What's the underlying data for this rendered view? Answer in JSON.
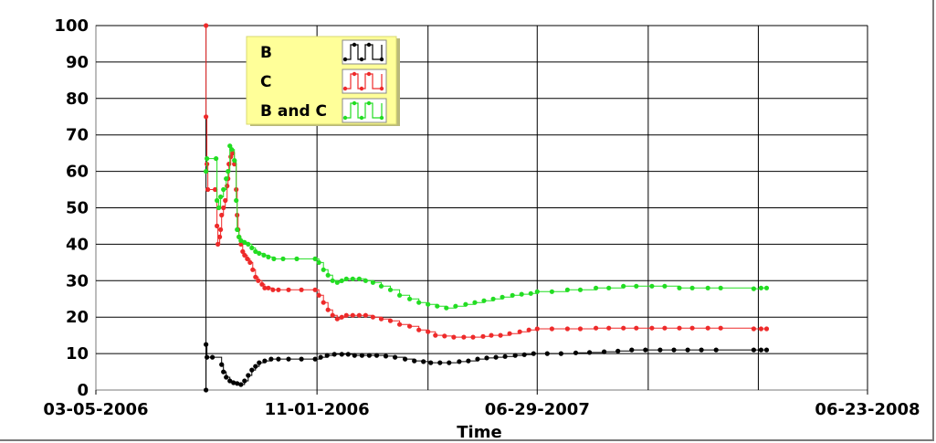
{
  "chart_data": {
    "type": "line",
    "title": "",
    "xlabel": "Time",
    "ylabel": "",
    "ylim": [
      0,
      100
    ],
    "y_ticks": [
      "0",
      "10",
      "20",
      "30",
      "40",
      "50",
      "60",
      "70",
      "80",
      "90",
      "100"
    ],
    "xlim": [
      "2006-03-05",
      "2008-06-23"
    ],
    "x_tick_labels": [
      {
        "date": "2006-03-05",
        "label": "03-05-2006"
      },
      {
        "date": "2006-11-01",
        "label": "11-01-2006"
      },
      {
        "date": "2007-06-29",
        "label": "06-29-2007"
      },
      {
        "date": "2008-06-23",
        "label": "06-23-2008"
      }
    ],
    "x_gridlines": [
      "2006-07-03",
      "2006-11-01",
      "2007-03-02",
      "2007-06-29",
      "2007-10-28",
      "2008-02-25",
      "2008-06-23"
    ],
    "grid": true,
    "step": true,
    "legend": {
      "position": "top-left",
      "background": "#ffff99"
    },
    "series": [
      {
        "name": "B",
        "color": "#000000",
        "points": [
          [
            "2006-07-03",
            0
          ],
          [
            "2006-07-03",
            12.5
          ],
          [
            "2006-07-04",
            9
          ],
          [
            "2006-07-10",
            9
          ],
          [
            "2006-07-20",
            7
          ],
          [
            "2006-07-22",
            5
          ],
          [
            "2006-07-25",
            3.5
          ],
          [
            "2006-07-29",
            2.5
          ],
          [
            "2006-08-02",
            2
          ],
          [
            "2006-08-06",
            1.8
          ],
          [
            "2006-08-10",
            1.5
          ],
          [
            "2006-08-14",
            2.5
          ],
          [
            "2006-08-18",
            4
          ],
          [
            "2006-08-22",
            5.5
          ],
          [
            "2006-08-26",
            6.5
          ],
          [
            "2006-08-30",
            7.5
          ],
          [
            "2006-09-05",
            8
          ],
          [
            "2006-09-12",
            8.5
          ],
          [
            "2006-09-20",
            8.5
          ],
          [
            "2006-10-01",
            8.5
          ],
          [
            "2006-10-15",
            8.5
          ],
          [
            "2006-10-30",
            8.5
          ],
          [
            "2006-11-05",
            9
          ],
          [
            "2006-11-12",
            9.5
          ],
          [
            "2006-11-20",
            9.8
          ],
          [
            "2006-11-28",
            9.8
          ],
          [
            "2006-12-05",
            9.8
          ],
          [
            "2006-12-12",
            9.5
          ],
          [
            "2006-12-20",
            9.5
          ],
          [
            "2006-12-28",
            9.5
          ],
          [
            "2007-01-05",
            9.5
          ],
          [
            "2007-01-15",
            9.3
          ],
          [
            "2007-01-25",
            9
          ],
          [
            "2007-02-05",
            8.5
          ],
          [
            "2007-02-15",
            8
          ],
          [
            "2007-02-25",
            7.8
          ],
          [
            "2007-03-05",
            7.5
          ],
          [
            "2007-03-15",
            7.5
          ],
          [
            "2007-03-25",
            7.5
          ],
          [
            "2007-04-05",
            7.8
          ],
          [
            "2007-04-15",
            8
          ],
          [
            "2007-04-25",
            8.5
          ],
          [
            "2007-05-05",
            8.8
          ],
          [
            "2007-05-15",
            9
          ],
          [
            "2007-05-25",
            9.2
          ],
          [
            "2007-06-05",
            9.5
          ],
          [
            "2007-06-15",
            9.7
          ],
          [
            "2007-06-25",
            10
          ],
          [
            "2007-07-10",
            10
          ],
          [
            "2007-07-25",
            10
          ],
          [
            "2007-08-10",
            10.2
          ],
          [
            "2007-08-25",
            10.3
          ],
          [
            "2007-09-10",
            10.5
          ],
          [
            "2007-09-25",
            10.7
          ],
          [
            "2007-10-10",
            11
          ],
          [
            "2007-10-25",
            11
          ],
          [
            "2007-11-10",
            11
          ],
          [
            "2007-11-25",
            11
          ],
          [
            "2007-12-10",
            11
          ],
          [
            "2007-12-25",
            11
          ],
          [
            "2008-01-10",
            11
          ],
          [
            "2008-02-20",
            11
          ],
          [
            "2008-02-28",
            11
          ],
          [
            "2008-03-05",
            11
          ]
        ]
      },
      {
        "name": "C",
        "color": "#ee2a2a",
        "points": [
          [
            "2006-07-03",
            100
          ],
          [
            "2006-07-03",
            75
          ],
          [
            "2006-07-04",
            62
          ],
          [
            "2006-07-05",
            55
          ],
          [
            "2006-07-13",
            55
          ],
          [
            "2006-07-15",
            45
          ],
          [
            "2006-07-16",
            40
          ],
          [
            "2006-07-18",
            42
          ],
          [
            "2006-07-19",
            44
          ],
          [
            "2006-07-20",
            48
          ],
          [
            "2006-07-22",
            50
          ],
          [
            "2006-07-24",
            52
          ],
          [
            "2006-07-26",
            56
          ],
          [
            "2006-07-27",
            58
          ],
          [
            "2006-07-28",
            62
          ],
          [
            "2006-07-30",
            64
          ],
          [
            "2006-08-01",
            65
          ],
          [
            "2006-08-03",
            62
          ],
          [
            "2006-08-05",
            55
          ],
          [
            "2006-08-06",
            48
          ],
          [
            "2006-08-07",
            44
          ],
          [
            "2006-08-08",
            42
          ],
          [
            "2006-08-10",
            40
          ],
          [
            "2006-08-12",
            38
          ],
          [
            "2006-08-14",
            37
          ],
          [
            "2006-08-17",
            36
          ],
          [
            "2006-08-20",
            35
          ],
          [
            "2006-08-23",
            33
          ],
          [
            "2006-08-26",
            31
          ],
          [
            "2006-08-29",
            30
          ],
          [
            "2006-09-02",
            29
          ],
          [
            "2006-09-05",
            28
          ],
          [
            "2006-09-09",
            28
          ],
          [
            "2006-09-14",
            27.5
          ],
          [
            "2006-09-20",
            27.5
          ],
          [
            "2006-10-01",
            27.5
          ],
          [
            "2006-10-15",
            27.5
          ],
          [
            "2006-10-30",
            27.5
          ],
          [
            "2006-11-03",
            26
          ],
          [
            "2006-11-08",
            24
          ],
          [
            "2006-11-13",
            22
          ],
          [
            "2006-11-18",
            20.5
          ],
          [
            "2006-11-23",
            19.5
          ],
          [
            "2006-11-28",
            20
          ],
          [
            "2006-12-03",
            20.5
          ],
          [
            "2006-12-10",
            20.5
          ],
          [
            "2006-12-17",
            20.5
          ],
          [
            "2006-12-24",
            20.5
          ],
          [
            "2007-01-01",
            20
          ],
          [
            "2007-01-10",
            19.5
          ],
          [
            "2007-01-20",
            19
          ],
          [
            "2007-01-30",
            18
          ],
          [
            "2007-02-10",
            17.5
          ],
          [
            "2007-02-20",
            16.5
          ],
          [
            "2007-03-02",
            16
          ],
          [
            "2007-03-10",
            15
          ],
          [
            "2007-03-20",
            14.8
          ],
          [
            "2007-03-30",
            14.5
          ],
          [
            "2007-04-10",
            14.5
          ],
          [
            "2007-04-20",
            14.5
          ],
          [
            "2007-05-01",
            14.7
          ],
          [
            "2007-05-10",
            15
          ],
          [
            "2007-05-20",
            15
          ],
          [
            "2007-05-30",
            15.5
          ],
          [
            "2007-06-10",
            16
          ],
          [
            "2007-06-20",
            16.5
          ],
          [
            "2007-06-29",
            16.8
          ],
          [
            "2007-07-15",
            16.8
          ],
          [
            "2007-08-01",
            16.8
          ],
          [
            "2007-08-15",
            16.8
          ],
          [
            "2007-09-01",
            17
          ],
          [
            "2007-09-15",
            17
          ],
          [
            "2007-10-01",
            17
          ],
          [
            "2007-10-15",
            17
          ],
          [
            "2007-11-01",
            17
          ],
          [
            "2007-11-15",
            17
          ],
          [
            "2007-12-01",
            17
          ],
          [
            "2007-12-15",
            17
          ],
          [
            "2008-01-01",
            17
          ],
          [
            "2008-01-15",
            17
          ],
          [
            "2008-02-20",
            16.8
          ],
          [
            "2008-02-28",
            16.8
          ],
          [
            "2008-03-05",
            16.8
          ]
        ]
      },
      {
        "name": "B and C",
        "color": "#22dd22",
        "points": [
          [
            "2006-07-03",
            60
          ],
          [
            "2006-07-04",
            63.5
          ],
          [
            "2006-07-14",
            63.5
          ],
          [
            "2006-07-15",
            52
          ],
          [
            "2006-07-17",
            50
          ],
          [
            "2006-07-19",
            53
          ],
          [
            "2006-07-22",
            55
          ],
          [
            "2006-07-25",
            58
          ],
          [
            "2006-07-27",
            60
          ],
          [
            "2006-07-29",
            67
          ],
          [
            "2006-07-31",
            66
          ],
          [
            "2006-08-03",
            63
          ],
          [
            "2006-08-05",
            52
          ],
          [
            "2006-08-06",
            44
          ],
          [
            "2006-08-08",
            42
          ],
          [
            "2006-08-10",
            41
          ],
          [
            "2006-08-14",
            40.5
          ],
          [
            "2006-08-18",
            40
          ],
          [
            "2006-08-22",
            39
          ],
          [
            "2006-08-26",
            38
          ],
          [
            "2006-08-30",
            37.5
          ],
          [
            "2006-09-04",
            37
          ],
          [
            "2006-09-09",
            36.5
          ],
          [
            "2006-09-15",
            36
          ],
          [
            "2006-09-25",
            36
          ],
          [
            "2006-10-10",
            36
          ],
          [
            "2006-10-30",
            36
          ],
          [
            "2006-11-03",
            35
          ],
          [
            "2006-11-08",
            33
          ],
          [
            "2006-11-13",
            31.5
          ],
          [
            "2006-11-18",
            30
          ],
          [
            "2006-11-23",
            29.5
          ],
          [
            "2006-11-28",
            30
          ],
          [
            "2006-12-03",
            30.5
          ],
          [
            "2006-12-10",
            30.5
          ],
          [
            "2006-12-17",
            30.5
          ],
          [
            "2006-12-24",
            30
          ],
          [
            "2007-01-01",
            29.5
          ],
          [
            "2007-01-10",
            28.5
          ],
          [
            "2007-01-20",
            27.5
          ],
          [
            "2007-01-30",
            26
          ],
          [
            "2007-02-10",
            25
          ],
          [
            "2007-02-20",
            24
          ],
          [
            "2007-03-02",
            23.5
          ],
          [
            "2007-03-12",
            23
          ],
          [
            "2007-03-22",
            22.5
          ],
          [
            "2007-04-01",
            23
          ],
          [
            "2007-04-12",
            23.5
          ],
          [
            "2007-04-22",
            24
          ],
          [
            "2007-05-02",
            24.5
          ],
          [
            "2007-05-12",
            25
          ],
          [
            "2007-05-22",
            25.5
          ],
          [
            "2007-06-02",
            26
          ],
          [
            "2007-06-12",
            26.3
          ],
          [
            "2007-06-22",
            26.5
          ],
          [
            "2007-06-29",
            27
          ],
          [
            "2007-07-15",
            27
          ],
          [
            "2007-08-01",
            27.5
          ],
          [
            "2007-08-15",
            27.5
          ],
          [
            "2007-09-01",
            28
          ],
          [
            "2007-09-15",
            28
          ],
          [
            "2007-10-01",
            28.5
          ],
          [
            "2007-10-15",
            28.5
          ],
          [
            "2007-11-01",
            28.5
          ],
          [
            "2007-11-15",
            28.5
          ],
          [
            "2007-12-01",
            28
          ],
          [
            "2007-12-15",
            28
          ],
          [
            "2008-01-01",
            28
          ],
          [
            "2008-01-15",
            28
          ],
          [
            "2008-02-20",
            27.8
          ],
          [
            "2008-02-28",
            28
          ],
          [
            "2008-03-05",
            28
          ]
        ]
      }
    ]
  }
}
